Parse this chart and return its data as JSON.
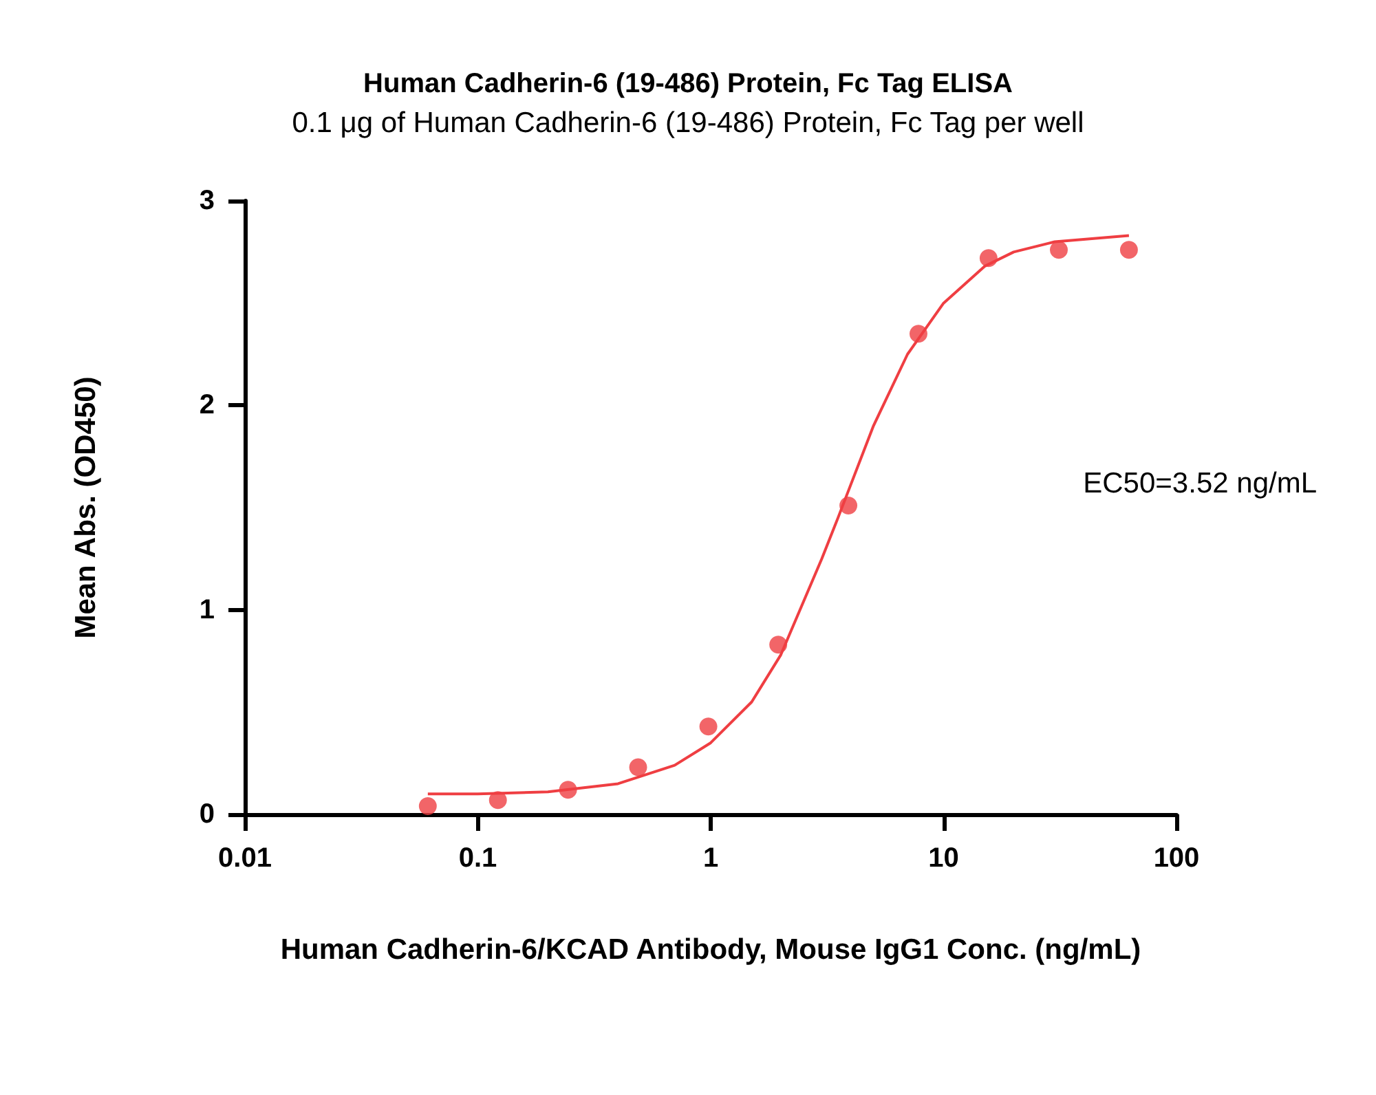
{
  "chart_data": {
    "type": "scatter",
    "title": "Human Cadherin-6 (19-486) Protein, Fc Tag ELISA",
    "subtitle": "0.1 μg of Human Cadherin-6 (19-486) Protein, Fc Tag per well",
    "xlabel": "Human Cadherin-6/KCAD Antibody, Mouse IgG1 Conc. (ng/mL)",
    "ylabel": "Mean Abs. (OD450)",
    "annotations": [
      "EC50=3.52 ng/mL"
    ],
    "log": "x",
    "xlim": [
      0.01,
      100
    ],
    "xticks": [
      0.01,
      0.1,
      1,
      10,
      100
    ],
    "ylim": [
      0,
      3
    ],
    "yticks": [
      0,
      1,
      2,
      3
    ],
    "grid": false,
    "marker": "circle",
    "series": [
      {
        "color": "#ef3e42",
        "x": [
          0.061,
          0.122,
          0.244,
          0.488,
          0.977,
          1.95,
          3.9,
          7.8,
          15.6,
          31.25,
          62.5
        ],
        "values": [
          0.04,
          0.07,
          0.12,
          0.23,
          0.43,
          0.83,
          1.51,
          2.35,
          2.72,
          2.76,
          2.76
        ]
      },
      {
        "type": "line",
        "color": "#ef3e42",
        "marker": "none",
        "x": [
          0.061,
          0.1,
          0.2,
          0.4,
          0.7,
          1,
          1.5,
          2,
          3,
          3.52,
          5,
          7,
          10,
          15,
          20,
          30,
          62.5
        ],
        "values": [
          0.1,
          0.1,
          0.11,
          0.15,
          0.24,
          0.35,
          0.55,
          0.78,
          1.25,
          1.45,
          1.9,
          2.25,
          2.5,
          2.68,
          2.75,
          2.8,
          2.83
        ]
      }
    ]
  }
}
